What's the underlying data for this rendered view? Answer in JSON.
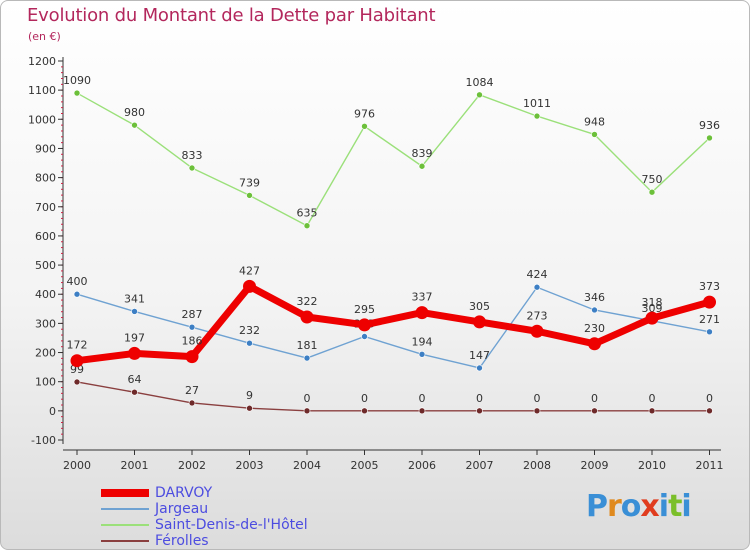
{
  "header": {
    "title": "Evolution du Montant de la Dette par Habitant",
    "unit": "(en €)"
  },
  "logo": {
    "letters": [
      "P",
      "r",
      "o",
      "x",
      "i",
      "t",
      "i"
    ],
    "colors": [
      "#3a8fd6",
      "#e08a1e",
      "#3a8fd6",
      "#e03c1e",
      "#3a8fd6",
      "#7bbf2a",
      "#3a8fd6"
    ]
  },
  "chart_data": {
    "type": "line",
    "title": "Evolution du Montant de la Dette par Habitant",
    "subtitle": "(en €)",
    "xlabel": "",
    "ylabel": "",
    "x": [
      "2000",
      "2001",
      "2002",
      "2003",
      "2004",
      "2005",
      "2006",
      "2007",
      "2008",
      "2009",
      "2010",
      "2011"
    ],
    "ylim": [
      -100,
      1200
    ],
    "yticks": [
      -100,
      0,
      100,
      200,
      300,
      400,
      500,
      600,
      700,
      800,
      900,
      1000,
      1100,
      1200
    ],
    "grid": false,
    "legend": "bottom-left",
    "series": [
      {
        "name": "DARVOY",
        "values": [
          172,
          197,
          186,
          427,
          322,
          295,
          337,
          305,
          273,
          230,
          318,
          373
        ],
        "color": "#ee0000",
        "marker": "#ee0000"
      },
      {
        "name": "Jargeau",
        "values": [
          400,
          341,
          287,
          232,
          181,
          255,
          194,
          147,
          424,
          346,
          309,
          271
        ],
        "color": "#6fa2d2",
        "marker": "#3d7fc4"
      },
      {
        "name": "Saint-Denis-de-l'Hôtel",
        "values": [
          1090,
          980,
          833,
          739,
          635,
          976,
          839,
          1084,
          1011,
          948,
          750,
          936
        ],
        "color": "#9be07a",
        "marker": "#6cc03a"
      },
      {
        "name": "Férolles",
        "values": [
          99,
          64,
          27,
          9,
          0,
          0,
          0,
          0,
          0,
          0,
          0,
          0
        ],
        "color": "#8a3f3f",
        "marker": "#6e2a2a"
      }
    ]
  }
}
